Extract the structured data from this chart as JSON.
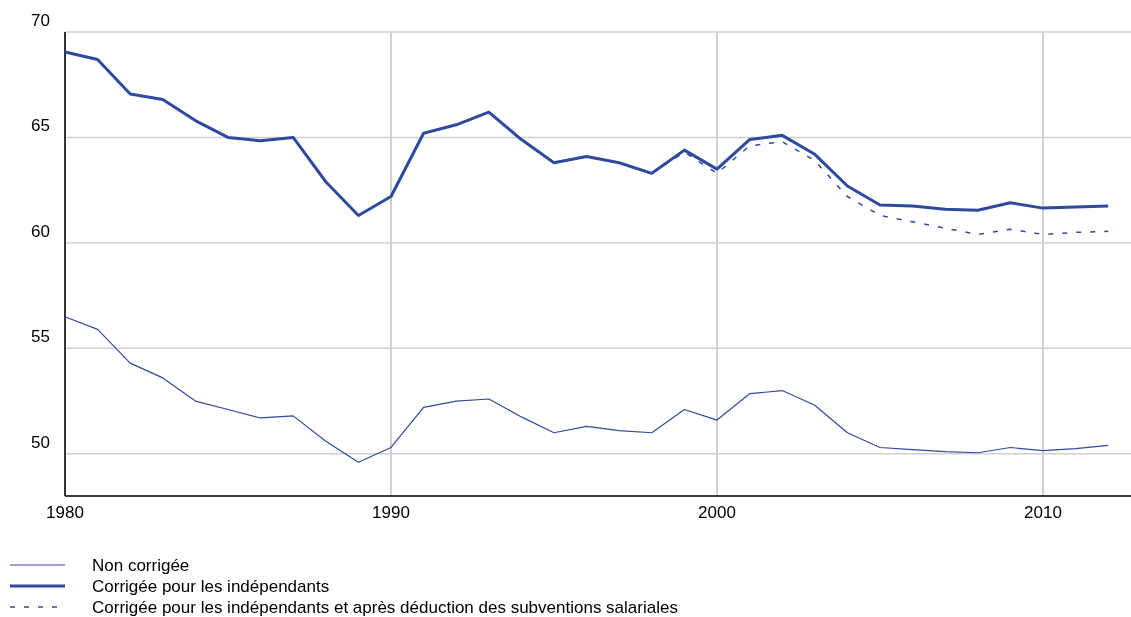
{
  "chart_data": {
    "type": "line",
    "x": [
      1980,
      1981,
      1982,
      1983,
      1984,
      1985,
      1986,
      1987,
      1988,
      1989,
      1990,
      1991,
      1992,
      1993,
      1994,
      1995,
      1996,
      1997,
      1998,
      1999,
      2000,
      2001,
      2002,
      2003,
      2004,
      2005,
      2006,
      2007,
      2008,
      2009,
      2010,
      2011,
      2012
    ],
    "series": [
      {
        "name": "Non corrigée",
        "color": "#2e4a9e",
        "line_style": "solid",
        "values": [
          56.5,
          55.9,
          54.3,
          53.6,
          52.5,
          52.1,
          51.7,
          51.8,
          50.6,
          49.6,
          50.3,
          52.2,
          52.5,
          52.6,
          51.75,
          51.0,
          51.3,
          51.1,
          51.0,
          52.1,
          51.6,
          52.85,
          53.0,
          52.3,
          51.0,
          50.3,
          50.2,
          50.1,
          50.05,
          50.3,
          50.15,
          50.25,
          50.4
        ]
      },
      {
        "name": "Corrigée pour les indépendants",
        "color": "#2e4a9e",
        "line_style": "solid",
        "values": [
          69.05,
          68.7,
          67.06,
          66.8,
          65.8,
          65.0,
          64.84,
          65.0,
          62.9,
          61.3,
          62.2,
          65.2,
          65.6,
          66.2,
          64.9,
          63.8,
          64.1,
          63.8,
          63.3,
          64.4,
          63.5,
          64.9,
          65.1,
          64.2,
          62.7,
          61.8,
          61.75,
          61.6,
          61.55,
          61.9,
          61.65,
          61.7,
          61.75
        ]
      },
      {
        "name": "Corrigée pour les indépendants et après déduction des subventions salariales",
        "color": "#2e4a9e",
        "line_style": "dashed",
        "values": [
          null,
          null,
          null,
          null,
          null,
          null,
          null,
          null,
          null,
          null,
          null,
          null,
          null,
          null,
          null,
          null,
          null,
          null,
          63.3,
          64.3,
          63.3,
          64.6,
          64.8,
          63.9,
          62.2,
          61.3,
          61.0,
          60.7,
          60.4,
          60.65,
          60.4,
          60.5,
          60.55
        ]
      }
    ],
    "xlim": [
      1980,
      2012.7
    ],
    "xticks": [
      1980,
      1990,
      2000,
      2010
    ],
    "ylim": [
      48,
      70
    ],
    "yticks": [
      50,
      55,
      60,
      65,
      70
    ],
    "grid": true,
    "legend": "bottom"
  }
}
